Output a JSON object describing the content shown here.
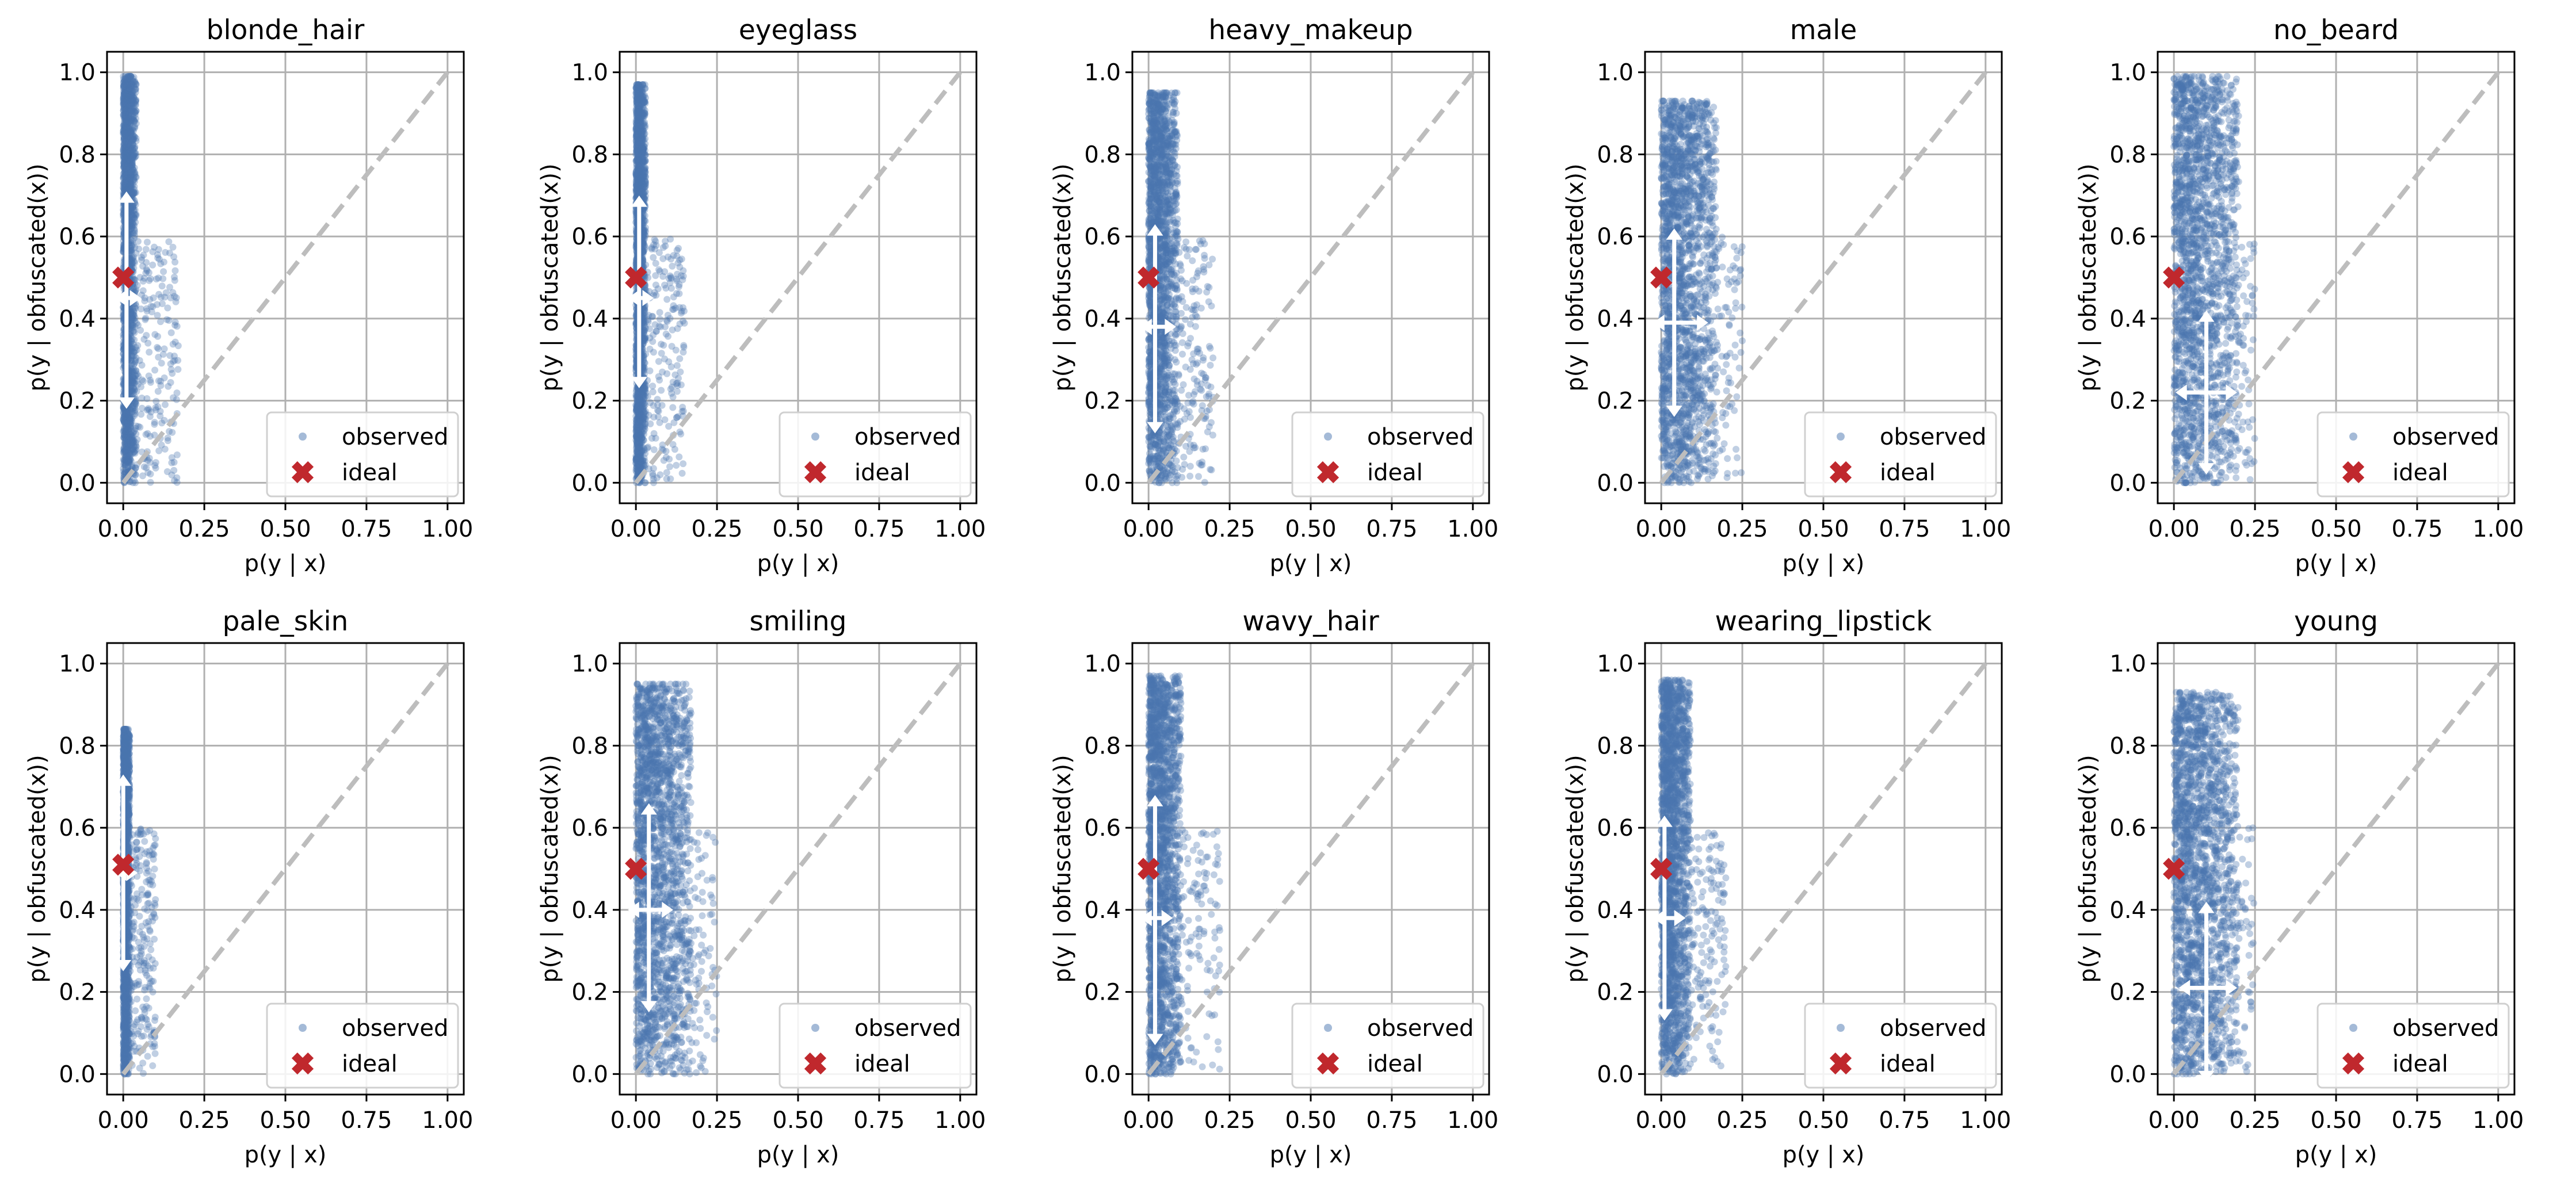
{
  "figure": {
    "xlabel": "p(y | x)",
    "ylabel": "p(y | obfuscated(x))",
    "legend": {
      "observed": "observed",
      "ideal": "ideal"
    },
    "xticks": [
      "0.00",
      "0.25",
      "0.50",
      "0.75",
      "1.00"
    ],
    "yticks": [
      "0.0",
      "0.2",
      "0.4",
      "0.6",
      "0.8",
      "1.0"
    ]
  },
  "chart_data": [
    {
      "type": "scatter",
      "title": "blonde_hair",
      "xlabel": "p(y | x)",
      "ylabel": "p(y | obfuscated(x))",
      "xlim": [
        -0.05,
        1.05
      ],
      "ylim": [
        -0.05,
        1.05
      ],
      "grid": true,
      "legend_position": "lower-right",
      "series": [
        {
          "name": "observed",
          "color": "#4a76b0",
          "cloud": {
            "x_min": 0.0,
            "x_core": 0.04,
            "x_max": 0.17,
            "y_min": 0.0,
            "y_max": 0.99
          }
        },
        {
          "name": "ideal",
          "color": "#c0282d",
          "points": [
            [
              0.0,
              0.5
            ]
          ]
        },
        {
          "name": "identity",
          "color": "#bdbdbd",
          "points": [
            [
              0.0,
              0.0
            ],
            [
              1.0,
              1.0
            ]
          ]
        }
      ],
      "error_bars": {
        "x_center": 0.01,
        "y_center": 0.45,
        "y_low": 0.2,
        "y_high": 0.69,
        "x_low": 0.0,
        "x_high": 0.03
      }
    },
    {
      "type": "scatter",
      "title": "eyeglass",
      "xlabel": "p(y | x)",
      "ylabel": "p(y | obfuscated(x))",
      "xlim": [
        -0.05,
        1.05
      ],
      "ylim": [
        -0.05,
        1.05
      ],
      "grid": true,
      "legend_position": "lower-right",
      "series": [
        {
          "name": "observed",
          "color": "#4a76b0",
          "cloud": {
            "x_min": 0.0,
            "x_core": 0.03,
            "x_max": 0.15,
            "y_min": 0.0,
            "y_max": 0.97
          }
        },
        {
          "name": "ideal",
          "color": "#c0282d",
          "points": [
            [
              0.0,
              0.5
            ]
          ]
        },
        {
          "name": "identity",
          "color": "#bdbdbd",
          "points": [
            [
              0.0,
              0.0
            ],
            [
              1.0,
              1.0
            ]
          ]
        }
      ],
      "error_bars": {
        "x_center": 0.01,
        "y_center": 0.45,
        "y_low": 0.25,
        "y_high": 0.68,
        "x_low": 0.0,
        "x_high": 0.03
      }
    },
    {
      "type": "scatter",
      "title": "heavy_makeup",
      "xlabel": "p(y | x)",
      "ylabel": "p(y | obfuscated(x))",
      "xlim": [
        -0.05,
        1.05
      ],
      "ylim": [
        -0.05,
        1.05
      ],
      "grid": true,
      "legend_position": "lower-right",
      "series": [
        {
          "name": "observed",
          "color": "#4a76b0",
          "cloud": {
            "x_min": 0.0,
            "x_core": 0.09,
            "x_max": 0.2,
            "y_min": 0.0,
            "y_max": 0.95
          }
        },
        {
          "name": "ideal",
          "color": "#c0282d",
          "points": [
            [
              0.0,
              0.5
            ]
          ]
        },
        {
          "name": "identity",
          "color": "#bdbdbd",
          "points": [
            [
              0.0,
              0.0
            ],
            [
              1.0,
              1.0
            ]
          ]
        }
      ],
      "error_bars": {
        "x_center": 0.02,
        "y_center": 0.38,
        "y_low": 0.14,
        "y_high": 0.61,
        "x_low": 0.0,
        "x_high": 0.06
      }
    },
    {
      "type": "scatter",
      "title": "male",
      "xlabel": "p(y | x)",
      "ylabel": "p(y | obfuscated(x))",
      "xlim": [
        -0.05,
        1.05
      ],
      "ylim": [
        -0.05,
        1.05
      ],
      "grid": true,
      "legend_position": "lower-right",
      "series": [
        {
          "name": "observed",
          "color": "#4a76b0",
          "cloud": {
            "x_min": 0.0,
            "x_core": 0.17,
            "x_max": 0.25,
            "y_min": 0.0,
            "y_max": 0.93
          }
        },
        {
          "name": "ideal",
          "color": "#c0282d",
          "points": [
            [
              0.0,
              0.5
            ]
          ]
        },
        {
          "name": "identity",
          "color": "#bdbdbd",
          "points": [
            [
              0.0,
              0.0
            ],
            [
              1.0,
              1.0
            ]
          ]
        }
      ],
      "error_bars": {
        "x_center": 0.04,
        "y_center": 0.39,
        "y_low": 0.18,
        "y_high": 0.6,
        "x_low": 0.0,
        "x_high": 0.12
      }
    },
    {
      "type": "scatter",
      "title": "no_beard",
      "xlabel": "p(y | x)",
      "ylabel": "p(y | obfuscated(x))",
      "xlim": [
        -0.05,
        1.05
      ],
      "ylim": [
        -0.05,
        1.05
      ],
      "grid": true,
      "legend_position": "lower-right",
      "series": [
        {
          "name": "observed",
          "color": "#4a76b0",
          "cloud": {
            "x_min": 0.0,
            "x_core": 0.2,
            "x_max": 0.25,
            "y_min": 0.0,
            "y_max": 0.99
          }
        },
        {
          "name": "ideal",
          "color": "#c0282d",
          "points": [
            [
              0.0,
              0.5
            ]
          ]
        },
        {
          "name": "identity",
          "color": "#bdbdbd",
          "points": [
            [
              0.0,
              0.0
            ],
            [
              1.0,
              1.0
            ]
          ]
        }
      ],
      "error_bars": {
        "x_center": 0.1,
        "y_center": 0.22,
        "y_low": 0.04,
        "y_high": 0.4,
        "x_low": 0.03,
        "x_high": 0.17
      }
    },
    {
      "type": "scatter",
      "title": "pale_skin",
      "xlabel": "p(y | x)",
      "ylabel": "p(y | obfuscated(x))",
      "xlim": [
        -0.05,
        1.05
      ],
      "ylim": [
        -0.05,
        1.05
      ],
      "grid": true,
      "legend_position": "lower-right",
      "series": [
        {
          "name": "observed",
          "color": "#4a76b0",
          "cloud": {
            "x_min": 0.0,
            "x_core": 0.02,
            "x_max": 0.1,
            "y_min": 0.0,
            "y_max": 0.84
          }
        },
        {
          "name": "ideal",
          "color": "#c0282d",
          "points": [
            [
              0.0,
              0.51
            ]
          ]
        },
        {
          "name": "identity",
          "color": "#bdbdbd",
          "points": [
            [
              0.0,
              0.0
            ],
            [
              1.0,
              1.0
            ]
          ]
        }
      ],
      "error_bars": {
        "x_center": 0.0,
        "y_center": 0.49,
        "y_low": 0.27,
        "y_high": 0.71,
        "x_low": 0.0,
        "x_high": 0.02
      }
    },
    {
      "type": "scatter",
      "title": "smiling",
      "xlabel": "p(y | x)",
      "ylabel": "p(y | obfuscated(x))",
      "xlim": [
        -0.05,
        1.05
      ],
      "ylim": [
        -0.05,
        1.05
      ],
      "grid": true,
      "legend_position": "lower-right",
      "series": [
        {
          "name": "observed",
          "color": "#4a76b0",
          "cloud": {
            "x_min": 0.0,
            "x_core": 0.17,
            "x_max": 0.25,
            "y_min": 0.0,
            "y_max": 0.95
          }
        },
        {
          "name": "ideal",
          "color": "#c0282d",
          "points": [
            [
              0.0,
              0.5
            ]
          ]
        },
        {
          "name": "identity",
          "color": "#bdbdbd",
          "points": [
            [
              0.0,
              0.0
            ],
            [
              1.0,
              1.0
            ]
          ]
        }
      ],
      "error_bars": {
        "x_center": 0.04,
        "y_center": 0.4,
        "y_low": 0.17,
        "y_high": 0.64,
        "x_low": 0.0,
        "x_high": 0.09
      }
    },
    {
      "type": "scatter",
      "title": "wavy_hair",
      "xlabel": "p(y | x)",
      "ylabel": "p(y | obfuscated(x))",
      "xlim": [
        -0.05,
        1.05
      ],
      "ylim": [
        -0.05,
        1.05
      ],
      "grid": true,
      "legend_position": "lower-right",
      "series": [
        {
          "name": "observed",
          "color": "#4a76b0",
          "cloud": {
            "x_min": 0.0,
            "x_core": 0.1,
            "x_max": 0.22,
            "y_min": 0.0,
            "y_max": 0.97
          }
        },
        {
          "name": "ideal",
          "color": "#c0282d",
          "points": [
            [
              0.0,
              0.5
            ]
          ]
        },
        {
          "name": "identity",
          "color": "#bdbdbd",
          "points": [
            [
              0.0,
              0.0
            ],
            [
              1.0,
              1.0
            ]
          ]
        }
      ],
      "error_bars": {
        "x_center": 0.02,
        "y_center": 0.38,
        "y_low": 0.09,
        "y_high": 0.66,
        "x_low": 0.0,
        "x_high": 0.05
      }
    },
    {
      "type": "scatter",
      "title": "wearing_lipstick",
      "xlabel": "p(y | x)",
      "ylabel": "p(y | obfuscated(x))",
      "xlim": [
        -0.05,
        1.05
      ],
      "ylim": [
        -0.05,
        1.05
      ],
      "grid": true,
      "legend_position": "lower-right",
      "series": [
        {
          "name": "observed",
          "color": "#4a76b0",
          "cloud": {
            "x_min": 0.0,
            "x_core": 0.09,
            "x_max": 0.2,
            "y_min": 0.0,
            "y_max": 0.96
          }
        },
        {
          "name": "ideal",
          "color": "#c0282d",
          "points": [
            [
              0.0,
              0.5
            ]
          ]
        },
        {
          "name": "identity",
          "color": "#bdbdbd",
          "points": [
            [
              0.0,
              0.0
            ],
            [
              1.0,
              1.0
            ]
          ]
        }
      ],
      "error_bars": {
        "x_center": 0.01,
        "y_center": 0.38,
        "y_low": 0.15,
        "y_high": 0.61,
        "x_low": 0.0,
        "x_high": 0.05
      }
    },
    {
      "type": "scatter",
      "title": "young",
      "xlabel": "p(y | x)",
      "ylabel": "p(y | obfuscated(x))",
      "xlim": [
        -0.05,
        1.05
      ],
      "ylim": [
        -0.05,
        1.05
      ],
      "grid": true,
      "legend_position": "lower-right",
      "series": [
        {
          "name": "observed",
          "color": "#4a76b0",
          "cloud": {
            "x_min": 0.0,
            "x_core": 0.2,
            "x_max": 0.25,
            "y_min": 0.0,
            "y_max": 0.93
          }
        },
        {
          "name": "ideal",
          "color": "#c0282d",
          "points": [
            [
              0.0,
              0.5
            ]
          ]
        },
        {
          "name": "identity",
          "color": "#bdbdbd",
          "points": [
            [
              0.0,
              0.0
            ],
            [
              1.0,
              1.0
            ]
          ]
        }
      ],
      "error_bars": {
        "x_center": 0.1,
        "y_center": 0.21,
        "y_low": 0.0,
        "y_high": 0.4,
        "x_low": 0.04,
        "x_high": 0.17
      }
    }
  ]
}
